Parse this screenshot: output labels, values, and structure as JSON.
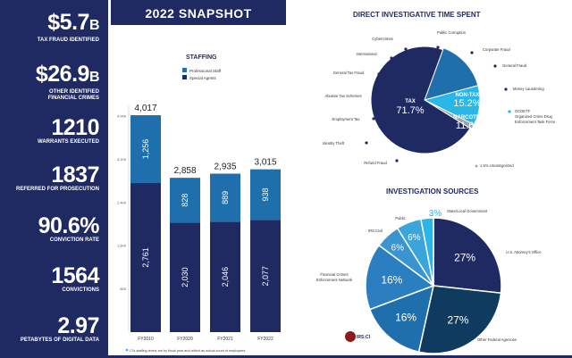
{
  "banner": "2022 SNAPSHOT",
  "stats": [
    {
      "value": "$5.7",
      "suffix": "B",
      "label": "TAX FRAUD IDENTIFIED"
    },
    {
      "value": "$26.9",
      "suffix": "B",
      "label1": "OTHER IDENTIFIED",
      "label2": "FINANCIAL CRIMES"
    },
    {
      "value": "1210",
      "suffix": "",
      "label": "WARRANTS EXECUTED"
    },
    {
      "value": "1837",
      "suffix": "",
      "label": "REFERRED FOR PROSECUTION"
    },
    {
      "value": "90.6%",
      "suffix": "",
      "label": "CONVICTION RATE"
    },
    {
      "value": "1564",
      "suffix": "",
      "label": "CONVICTIONS"
    },
    {
      "value": "2.97",
      "suffix": "",
      "label": "PETABYTES OF DIGITAL DATA"
    }
  ],
  "staffing_title": "STAFFING",
  "pie_title": "DIRECT INVESTIGATIVE TIME SPENT",
  "sources_title": "INVESTIGATION SOURCES",
  "footnote": "CI's staffing levels are by fiscal year and reflect an actual count of employees",
  "irsci_logo": "IRS:CI",
  "colors": {
    "navy": "#1f2a63",
    "blue": "#1f6fad",
    "midblue": "#2b7fc1",
    "lightblue": "#3aa5dc",
    "cyan": "#29b6e8",
    "dark": "#0f3b5e"
  },
  "chart_data": [
    {
      "type": "bar",
      "title": "STAFFING",
      "categories": [
        "FY2010",
        "FY2020",
        "FY2021",
        "FY2022"
      ],
      "series": [
        {
          "name": "Special Agents",
          "values": [
            2761,
            2030,
            2046,
            2077
          ],
          "color": "#1f2a63"
        },
        {
          "name": "Professional Staff",
          "values": [
            1256,
            828,
            889,
            938
          ],
          "color": "#1f6fad"
        }
      ],
      "totals": [
        "4,017",
        "2,858",
        "2,935",
        "3,015"
      ],
      "segment_labels": [
        [
          "2,761",
          "2,030",
          "2,046",
          "2,077"
        ],
        [
          "1,256",
          "828",
          "889",
          "938"
        ]
      ],
      "yticks": [
        "800",
        "1,600",
        "2,400",
        "3,200",
        "4,000"
      ],
      "ytick_values": [
        800,
        1600,
        2400,
        3200,
        4000
      ],
      "ylim": [
        0,
        4200
      ]
    },
    {
      "type": "pie",
      "title": "DIRECT INVESTIGATIVE TIME SPENT",
      "slices": [
        {
          "name": "TAX",
          "value": 71.7,
          "label": "71.7%",
          "color": "#1f2a63"
        },
        {
          "name": "NON-TAX",
          "value": 15.2,
          "label": "15.2%",
          "color": "#1f6fad"
        },
        {
          "name": "NARCOTICS",
          "value": 11.6,
          "label": "11.6%",
          "color": "#29b6e8"
        },
        {
          "name": "Unallocated",
          "value": 1.5,
          "label": "1.5% Uncategorized",
          "color": "#9aa3b5"
        }
      ],
      "annotations": [
        "Cybercrimes",
        "Public Corruption",
        "International",
        "Corporate Fraud",
        "General Tax Fraud",
        "General Fraud",
        "Abusive Tax Schemes",
        "Money Laundering",
        "Employment Tax",
        "OCDETF Organized Crime Drug Enforcement Task Force",
        "Identity Theft",
        "Refund Fraud"
      ]
    },
    {
      "type": "pie",
      "title": "INVESTIGATION SOURCES",
      "slices": [
        {
          "name": "U.S. Attorney's Office",
          "value": 27,
          "label": "27%",
          "color": "#1f2a63"
        },
        {
          "name": "Other Federal Agencies",
          "value": 27,
          "label": "27%",
          "color": "#0f3b5e"
        },
        {
          "name": "IRS:CI",
          "value": 16,
          "label": "16%",
          "color": "#1f6fad"
        },
        {
          "name": "Financial Crimes Enforcement Network",
          "value": 16,
          "label": "16%",
          "color": "#2b7fc1"
        },
        {
          "name": "IRS:Civil",
          "value": 6,
          "label": "6%",
          "color": "#3a94cf"
        },
        {
          "name": "Public",
          "value": 6,
          "label": "6%",
          "color": "#3aa5dc"
        },
        {
          "name": "State/Local Government",
          "value": 3,
          "label": "3%",
          "color": "#29b6e8"
        }
      ]
    }
  ]
}
